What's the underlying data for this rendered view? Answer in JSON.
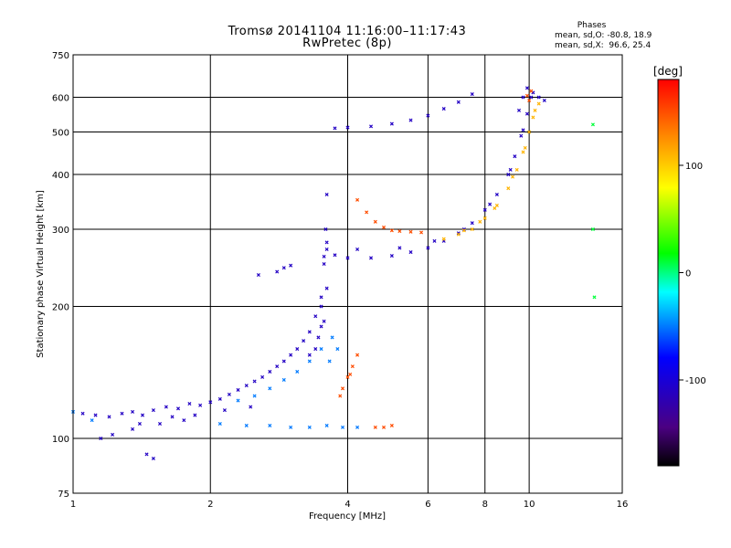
{
  "chart_data": {
    "type": "scatter",
    "title": "Tromsø 20141104 11:16:00–11:17:43",
    "subtitle": "RwPretec (8p)",
    "xlabel": "Frequency [MHz]",
    "ylabel": "Stationary phase Virtual Height [km]",
    "x_scale": "log",
    "y_scale": "log",
    "xlim": [
      1,
      16
    ],
    "ylim": [
      75,
      750
    ],
    "x_ticks": [
      1,
      2,
      4,
      6,
      8,
      10,
      16
    ],
    "x_tick_labels": [
      "1",
      "2",
      "4",
      "6",
      "8",
      "10",
      "16"
    ],
    "y_ticks": [
      75,
      100,
      200,
      300,
      400,
      500,
      600,
      750
    ],
    "y_tick_labels": [
      "75",
      "100",
      "200",
      "300",
      "400",
      "500",
      "600",
      "750"
    ],
    "grid": true,
    "phase_info": {
      "heading": "Phases",
      "o_stats": "mean, sd,O: -80.8, 18.9",
      "x_stats": "mean, sd,X:  96.6, 25.4"
    },
    "colorbar": {
      "label": "[deg]",
      "range": [
        -180,
        180
      ],
      "ticks": [
        100,
        0,
        -100
      ],
      "tick_labels": [
        "100",
        "0",
        "-100"
      ],
      "colors": [
        "#000000",
        "#4b0082",
        "#0000ff",
        "#00ffff",
        "#00ff00",
        "#ffff00",
        "#ff8c00",
        "#ff0000"
      ]
    },
    "series": [
      {
        "points": [
          [
            1.05,
            114
          ],
          [
            1.12,
            113
          ],
          [
            1.2,
            112
          ],
          [
            1.28,
            114
          ],
          [
            1.35,
            115
          ],
          [
            1.42,
            113
          ],
          [
            1.5,
            116
          ],
          [
            1.6,
            118
          ],
          [
            1.7,
            117
          ],
          [
            1.8,
            120
          ],
          [
            1.9,
            119
          ],
          [
            2.0,
            121
          ],
          [
            2.1,
            123
          ],
          [
            2.2,
            126
          ],
          [
            2.3,
            129
          ],
          [
            2.4,
            132
          ],
          [
            2.5,
            135
          ],
          [
            2.6,
            138
          ],
          [
            2.7,
            142
          ],
          [
            2.8,
            146
          ],
          [
            2.9,
            150
          ],
          [
            3.0,
            155
          ],
          [
            3.1,
            160
          ],
          [
            3.2,
            167
          ],
          [
            3.3,
            175
          ],
          [
            3.4,
            190
          ],
          [
            3.5,
            210
          ],
          [
            3.55,
            250
          ],
          [
            3.58,
            300
          ],
          [
            3.6,
            360
          ],
          [
            1.45,
            92
          ],
          [
            1.5,
            90
          ],
          [
            1.15,
            100
          ],
          [
            1.22,
            102
          ],
          [
            1.35,
            105
          ],
          [
            1.4,
            108
          ],
          [
            1.55,
            108
          ],
          [
            1.65,
            112
          ],
          [
            1.75,
            110
          ],
          [
            1.85,
            113
          ],
          [
            2.15,
            116
          ],
          [
            2.45,
            118
          ],
          [
            3.45,
            170
          ],
          [
            3.5,
            180
          ],
          [
            3.55,
            185
          ],
          [
            3.4,
            160
          ],
          [
            3.3,
            155
          ],
          [
            3.5,
            200
          ],
          [
            3.6,
            220
          ],
          [
            3.55,
            260
          ],
          [
            3.6,
            270
          ],
          [
            3.75,
            262
          ],
          [
            4.0,
            258
          ],
          [
            4.5,
            258
          ],
          [
            5.0,
            261
          ],
          [
            5.5,
            266
          ],
          [
            6.0,
            272
          ],
          [
            6.5,
            282
          ],
          [
            7.0,
            294
          ],
          [
            7.5,
            310
          ],
          [
            8.0,
            332
          ],
          [
            8.5,
            360
          ],
          [
            9.0,
            400
          ],
          [
            9.3,
            440
          ],
          [
            9.6,
            490
          ],
          [
            9.9,
            550
          ],
          [
            10.1,
            600
          ],
          [
            3.6,
            280
          ],
          [
            4.2,
            270
          ],
          [
            5.2,
            272
          ],
          [
            6.2,
            282
          ],
          [
            7.2,
            300
          ],
          [
            8.2,
            342
          ],
          [
            9.1,
            410
          ],
          [
            9.7,
            505
          ],
          [
            3.75,
            510
          ],
          [
            4.0,
            512
          ],
          [
            4.5,
            515
          ],
          [
            5.0,
            522
          ],
          [
            5.5,
            532
          ],
          [
            6.0,
            545
          ],
          [
            6.5,
            565
          ],
          [
            7.0,
            585
          ],
          [
            7.5,
            610
          ],
          [
            2.8,
            240
          ],
          [
            2.9,
            245
          ],
          [
            3.0,
            248
          ],
          [
            2.55,
            236
          ],
          [
            9.5,
            560
          ],
          [
            9.7,
            600
          ],
          [
            9.9,
            630
          ],
          [
            10.2,
            615
          ],
          [
            10.5,
            600
          ],
          [
            10.8,
            590
          ]
        ],
        "phase_deg": -110
      },
      {
        "points": [
          [
            2.1,
            108
          ],
          [
            2.4,
            107
          ],
          [
            2.7,
            107
          ],
          [
            3.0,
            106
          ],
          [
            3.3,
            106
          ],
          [
            3.6,
            107
          ],
          [
            3.9,
            106
          ],
          [
            4.2,
            106
          ],
          [
            1.0,
            115
          ],
          [
            1.1,
            110
          ],
          [
            2.3,
            122
          ],
          [
            2.5,
            125
          ],
          [
            2.7,
            130
          ],
          [
            2.9,
            136
          ],
          [
            3.1,
            142
          ],
          [
            3.3,
            150
          ],
          [
            3.5,
            160
          ],
          [
            3.7,
            170
          ],
          [
            3.65,
            150
          ],
          [
            3.8,
            160
          ]
        ],
        "phase_deg": -50
      },
      {
        "points": [
          [
            6.5,
            285
          ],
          [
            7.0,
            292
          ],
          [
            7.5,
            300
          ],
          [
            8.0,
            318
          ],
          [
            8.5,
            340
          ],
          [
            9.0,
            372
          ],
          [
            9.4,
            410
          ],
          [
            9.8,
            460
          ],
          [
            10.0,
            500
          ],
          [
            10.2,
            540
          ],
          [
            10.5,
            580
          ],
          [
            7.2,
            298
          ],
          [
            7.8,
            312
          ],
          [
            8.4,
            335
          ],
          [
            9.2,
            395
          ],
          [
            9.7,
            450
          ],
          [
            10.3,
            560
          ]
        ],
        "phase_deg": 110
      },
      {
        "points": [
          [
            4.2,
            350
          ],
          [
            4.4,
            328
          ],
          [
            4.6,
            312
          ],
          [
            4.8,
            303
          ],
          [
            5.0,
            298
          ],
          [
            5.2,
            297
          ],
          [
            5.5,
            296
          ],
          [
            5.8,
            295
          ],
          [
            3.85,
            125
          ],
          [
            3.9,
            130
          ],
          [
            4.0,
            138
          ],
          [
            4.1,
            146
          ],
          [
            4.2,
            155
          ],
          [
            4.05,
            140
          ],
          [
            4.6,
            106
          ],
          [
            4.8,
            106
          ],
          [
            5.0,
            107
          ],
          [
            10.0,
            590
          ],
          [
            10.1,
            620
          ],
          [
            9.9,
            605
          ]
        ],
        "phase_deg": 150
      },
      {
        "points": [
          [
            13.8,
            520
          ],
          [
            13.8,
            300
          ],
          [
            13.9,
            210
          ]
        ],
        "phase_deg": 10
      }
    ]
  }
}
